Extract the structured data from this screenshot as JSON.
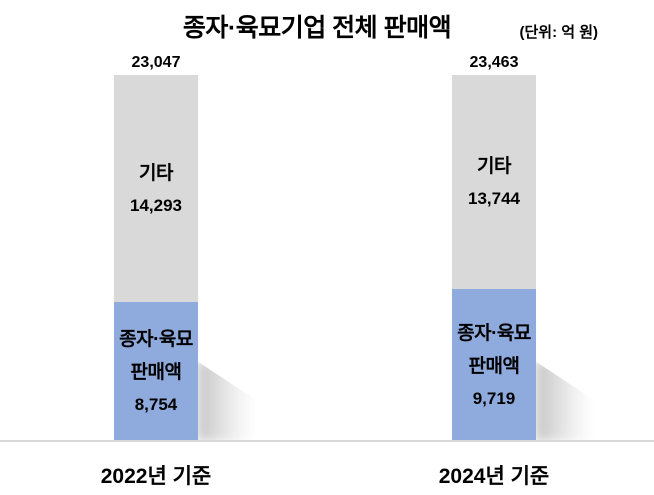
{
  "header": {
    "title": "종자·육묘기업 전체 판매액",
    "unit_label": "(단위: 억 원)"
  },
  "chart_data": {
    "type": "bar",
    "stacked": true,
    "title": "종자·육묘기업 전체 판매액",
    "unit": "억 원",
    "categories": [
      "2022년 기준",
      "2024년 기준"
    ],
    "series": [
      {
        "name": "종자·육묘 판매액",
        "values": [
          8754,
          9719
        ],
        "color": "#8faadc"
      },
      {
        "name": "기타",
        "values": [
          14293,
          13744
        ],
        "color": "#d9d9d9"
      }
    ],
    "totals": [
      23047,
      23463
    ],
    "legend_position": "none",
    "grid": false,
    "value_labels": true,
    "total_labels": true
  },
  "bars": [
    {
      "total_label": "23,047",
      "other_name": "기타",
      "other_value_label": "14,293",
      "seed_name_line1": "종자·육묘",
      "seed_name_line2": "판매액",
      "seed_value_label": "8,754",
      "category_label": "2022년 기준"
    },
    {
      "total_label": "23,463",
      "other_name": "기타",
      "other_value_label": "13,744",
      "seed_name_line1": "종자·육묘",
      "seed_name_line2": "판매액",
      "seed_value_label": "9,719",
      "category_label": "2024년 기준"
    }
  ],
  "colors": {
    "seed_segment": "#8faadc",
    "other_segment": "#d9d9d9",
    "axis_line": "#d9d9d9",
    "text": "#000000",
    "background": "#ffffff"
  }
}
